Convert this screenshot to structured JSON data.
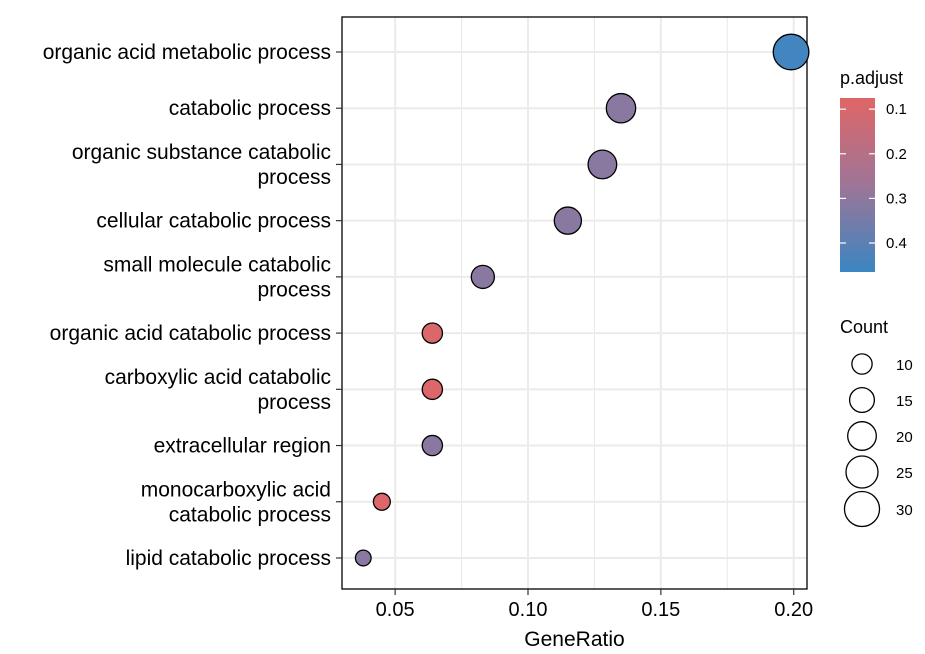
{
  "chart_data": {
    "type": "scatter",
    "title": "",
    "xlabel": "GeneRatio",
    "ylabel": "",
    "xlim": [
      0.03,
      0.205
    ],
    "x_ticks": [
      {
        "value": 0.05,
        "label": "0.05"
      },
      {
        "value": 0.1,
        "label": "0.10"
      },
      {
        "value": 0.15,
        "label": "0.15"
      },
      {
        "value": 0.2,
        "label": "0.20"
      }
    ],
    "grid": true,
    "categories": [
      [
        "organic acid metabolic process"
      ],
      [
        "catabolic process"
      ],
      [
        "organic substance catabolic",
        "process"
      ],
      [
        "cellular catabolic process"
      ],
      [
        "small molecule catabolic",
        "process"
      ],
      [
        "organic acid catabolic process"
      ],
      [
        "carboxylic acid catabolic",
        "process"
      ],
      [
        "extracellular region"
      ],
      [
        "monocarboxylic acid",
        "catabolic process"
      ],
      [
        "lipid catabolic process"
      ]
    ],
    "points": [
      {
        "gene_ratio": 0.199,
        "count": 31,
        "p_adjust": 0.45
      },
      {
        "gene_ratio": 0.135,
        "count": 21,
        "p_adjust": 0.31
      },
      {
        "gene_ratio": 0.128,
        "count": 20,
        "p_adjust": 0.31
      },
      {
        "gene_ratio": 0.115,
        "count": 18,
        "p_adjust": 0.31
      },
      {
        "gene_ratio": 0.083,
        "count": 13,
        "p_adjust": 0.31
      },
      {
        "gene_ratio": 0.064,
        "count": 10,
        "p_adjust": 0.09
      },
      {
        "gene_ratio": 0.064,
        "count": 10,
        "p_adjust": 0.09
      },
      {
        "gene_ratio": 0.064,
        "count": 10,
        "p_adjust": 0.31
      },
      {
        "gene_ratio": 0.045,
        "count": 7,
        "p_adjust": 0.09
      },
      {
        "gene_ratio": 0.038,
        "count": 6,
        "p_adjust": 0.31
      }
    ],
    "color_legend": {
      "title": "p.adjust",
      "range": [
        0.075,
        0.465
      ],
      "low_color": "#E06666",
      "mid_color": "#9E7597",
      "high_color": "#3A86C2",
      "ticks": [
        {
          "value": 0.1,
          "label": "0.1"
        },
        {
          "value": 0.2,
          "label": "0.2"
        },
        {
          "value": 0.3,
          "label": "0.3"
        },
        {
          "value": 0.4,
          "label": "0.4"
        }
      ]
    },
    "size_legend": {
      "title": "Count",
      "entries": [
        {
          "value": 10,
          "label": "10"
        },
        {
          "value": 15,
          "label": "15"
        },
        {
          "value": 20,
          "label": "20"
        },
        {
          "value": 25,
          "label": "25"
        },
        {
          "value": 30,
          "label": "30"
        }
      ]
    },
    "colors": {
      "grid": "#EBEBEB",
      "panel_border": "#000000",
      "point_stroke": "#000000"
    }
  }
}
